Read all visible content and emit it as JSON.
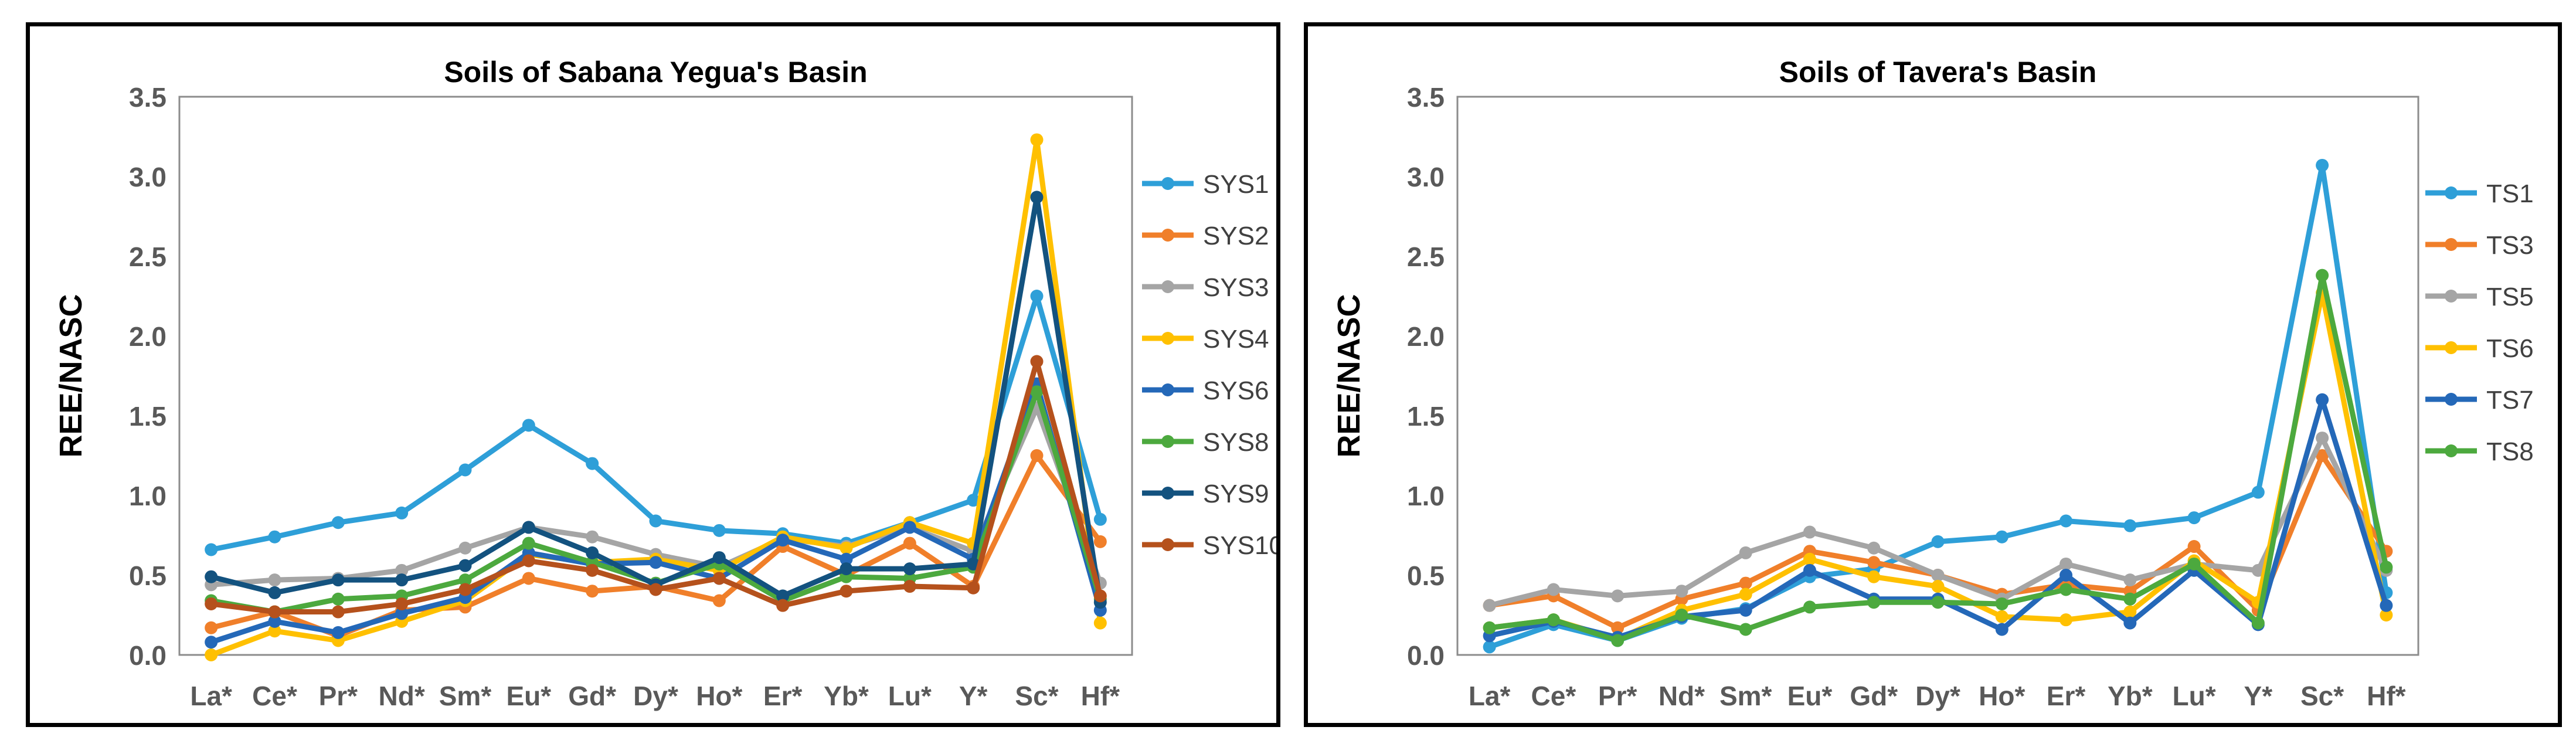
{
  "chart_data": [
    {
      "type": "line",
      "title": "Soils of Sabana Yegua's Basin",
      "xlabel": "",
      "ylabel": "REE/NASC",
      "ylim": [
        0,
        3.5
      ],
      "yticks": [
        "0.0",
        "0.5",
        "1.0",
        "1.5",
        "2.0",
        "2.5",
        "3.0",
        "3.5"
      ],
      "categories": [
        "La*",
        "Ce*",
        "Pr*",
        "Nd*",
        "Sm*",
        "Eu*",
        "Gd*",
        "Dy*",
        "Ho*",
        "Er*",
        "Yb*",
        "Lu*",
        "Y*",
        "Sc*",
        "Hf*"
      ],
      "legend": "right",
      "series": [
        {
          "name": "SYS1",
          "color": "#2E9FD8",
          "values": [
            0.66,
            0.74,
            0.83,
            0.89,
            1.16,
            1.44,
            1.2,
            0.84,
            0.78,
            0.76,
            0.7,
            0.83,
            0.97,
            2.25,
            0.85
          ]
        },
        {
          "name": "SYS2",
          "color": "#F07F2A",
          "values": [
            0.17,
            0.27,
            0.12,
            0.28,
            0.3,
            0.48,
            0.4,
            0.43,
            0.34,
            0.68,
            0.5,
            0.7,
            0.43,
            1.25,
            0.71
          ]
        },
        {
          "name": "SYS3",
          "color": "#A5A5A5",
          "values": [
            0.44,
            0.47,
            0.48,
            0.53,
            0.67,
            0.8,
            0.74,
            0.63,
            0.55,
            0.73,
            0.68,
            0.8,
            0.65,
            1.55,
            0.45
          ]
        },
        {
          "name": "SYS4",
          "color": "#FFC000",
          "values": [
            0.0,
            0.15,
            0.09,
            0.21,
            0.34,
            0.63,
            0.58,
            0.6,
            0.53,
            0.74,
            0.67,
            0.83,
            0.7,
            3.23,
            0.2
          ]
        },
        {
          "name": "SYS6",
          "color": "#2468B8",
          "values": [
            0.08,
            0.21,
            0.14,
            0.26,
            0.36,
            0.64,
            0.57,
            0.58,
            0.48,
            0.72,
            0.6,
            0.8,
            0.6,
            1.7,
            0.28
          ]
        },
        {
          "name": "SYS8",
          "color": "#4CA93E",
          "values": [
            0.34,
            0.27,
            0.35,
            0.37,
            0.47,
            0.7,
            0.58,
            0.45,
            0.57,
            0.34,
            0.49,
            0.48,
            0.55,
            1.65,
            0.35
          ]
        },
        {
          "name": "SYS9",
          "color": "#13527F",
          "values": [
            0.49,
            0.39,
            0.47,
            0.47,
            0.56,
            0.8,
            0.64,
            0.44,
            0.61,
            0.37,
            0.54,
            0.54,
            0.57,
            2.87,
            0.33
          ]
        },
        {
          "name": "SYS10",
          "color": "#B5511C",
          "values": [
            0.32,
            0.27,
            0.27,
            0.32,
            0.41,
            0.59,
            0.53,
            0.41,
            0.48,
            0.31,
            0.4,
            0.43,
            0.42,
            1.84,
            0.37
          ]
        }
      ]
    },
    {
      "type": "line",
      "title": "Soils of Tavera's Basin",
      "xlabel": "",
      "ylabel": "REE/NASC",
      "ylim": [
        0,
        3.5
      ],
      "yticks": [
        "0.0",
        "0.5",
        "1.0",
        "1.5",
        "2.0",
        "2.5",
        "3.0",
        "3.5"
      ],
      "categories": [
        "La*",
        "Ce*",
        "Pr*",
        "Nd*",
        "Sm*",
        "Eu*",
        "Gd*",
        "Dy*",
        "Ho*",
        "Er*",
        "Yb*",
        "Lu*",
        "Y*",
        "Sc*",
        "Hf*"
      ],
      "legend": "right",
      "series": [
        {
          "name": "TS1",
          "color": "#2E9FD8",
          "values": [
            0.05,
            0.19,
            0.09,
            0.23,
            0.29,
            0.49,
            0.54,
            0.71,
            0.74,
            0.84,
            0.81,
            0.86,
            1.02,
            3.07,
            0.39
          ]
        },
        {
          "name": "TS3",
          "color": "#F07F2A",
          "values": [
            0.31,
            0.37,
            0.17,
            0.35,
            0.45,
            0.65,
            0.58,
            0.5,
            0.38,
            0.44,
            0.4,
            0.68,
            0.28,
            1.25,
            0.65
          ]
        },
        {
          "name": "TS5",
          "color": "#A5A5A5",
          "values": [
            0.31,
            0.41,
            0.37,
            0.4,
            0.64,
            0.77,
            0.67,
            0.5,
            0.35,
            0.57,
            0.47,
            0.57,
            0.53,
            1.36,
            0.53
          ]
        },
        {
          "name": "TS6",
          "color": "#FFC000",
          "values": [
            0.17,
            0.22,
            0.1,
            0.28,
            0.38,
            0.6,
            0.49,
            0.43,
            0.24,
            0.22,
            0.27,
            0.59,
            0.33,
            2.27,
            0.25
          ]
        },
        {
          "name": "TS7",
          "color": "#2468B8",
          "values": [
            0.12,
            0.21,
            0.11,
            0.24,
            0.28,
            0.53,
            0.35,
            0.35,
            0.16,
            0.5,
            0.2,
            0.53,
            0.19,
            1.6,
            0.31
          ]
        },
        {
          "name": "TS8",
          "color": "#4CA93E",
          "values": [
            0.17,
            0.22,
            0.09,
            0.25,
            0.16,
            0.3,
            0.33,
            0.33,
            0.32,
            0.41,
            0.35,
            0.57,
            0.2,
            2.38,
            0.55
          ]
        }
      ]
    }
  ]
}
